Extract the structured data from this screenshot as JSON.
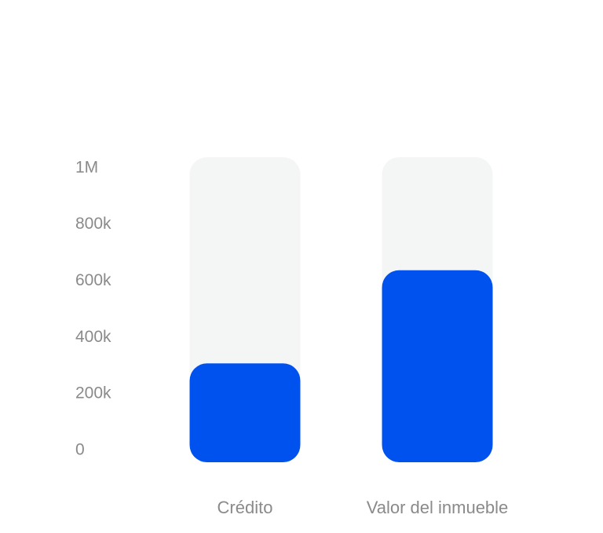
{
  "chart_data": {
    "type": "bar",
    "categories": [
      "Crédito",
      "Valor del inmueble"
    ],
    "values": [
      350000,
      680000
    ],
    "color": "#0052ee",
    "track_color": "#f4f5f5",
    "ylim": [
      0,
      1080000
    ],
    "yticks": [
      0,
      {
        "value": 200000,
        "label": "200k"
      },
      {
        "value": 400000,
        "label": "400k"
      },
      {
        "value": 600000,
        "label": "600k"
      },
      {
        "value": 800000,
        "label": "800k"
      },
      {
        "value": 1000000,
        "label": "1M"
      }
    ],
    "grid": false
  }
}
